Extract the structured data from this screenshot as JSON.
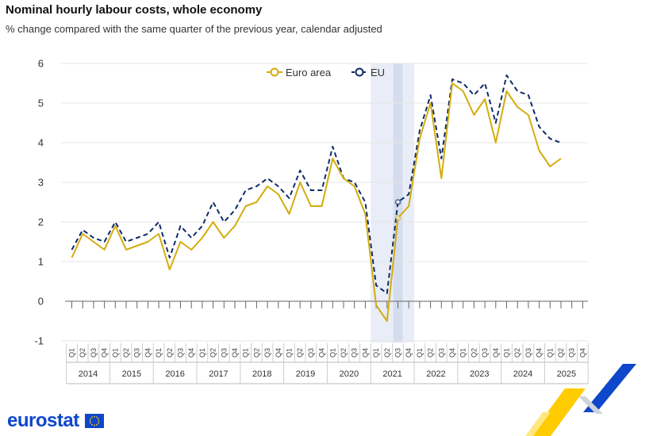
{
  "header": {
    "title": "Nominal hourly labour costs, whole economy",
    "subtitle": "% change compared with the same quarter of the previous year, calendar adjusted"
  },
  "logo": {
    "text": "eurostat"
  },
  "chart_data": {
    "type": "line",
    "title": "Nominal hourly labour costs, whole economy",
    "subtitle": "% change compared with the same quarter of the previous year, calendar adjusted",
    "ylim": [
      -1,
      6
    ],
    "yticks": [
      "6",
      "5",
      "4",
      "3",
      "2",
      "1",
      "0",
      "-1"
    ],
    "quarter_labels": [
      "Q1",
      "Q2",
      "Q3",
      "Q4"
    ],
    "years": [
      "2014",
      "2015",
      "2016",
      "2017",
      "2018",
      "2019",
      "2020",
      "2021",
      "2022",
      "2023",
      "2024",
      "2025"
    ],
    "highlight": {
      "year": "2021",
      "quarter": "Q3"
    },
    "legend": {
      "position": "top-center"
    },
    "colors": {
      "euro_area": "#d4ac0d",
      "eu": "#0f2c68",
      "highlight": "#e8edf7",
      "highlight_dark": "#d4dcee",
      "grid": "#e6e6e6"
    },
    "series": [
      {
        "name": "Euro area",
        "style": "solid",
        "values": [
          1.1,
          1.7,
          1.5,
          1.3,
          1.9,
          1.3,
          1.4,
          1.5,
          1.7,
          0.8,
          1.5,
          1.3,
          1.6,
          2.0,
          1.6,
          1.9,
          2.4,
          2.5,
          2.9,
          2.7,
          2.2,
          3.0,
          2.4,
          2.4,
          3.6,
          3.1,
          2.9,
          2.2,
          -0.1,
          -0.5,
          2.1,
          2.4,
          4.1,
          5.0,
          3.1,
          5.5,
          5.3,
          4.7,
          5.1,
          4.0,
          5.3,
          4.9,
          4.7,
          3.8,
          3.4,
          3.6
        ]
      },
      {
        "name": "EU",
        "style": "dashed",
        "values": [
          1.3,
          1.8,
          1.6,
          1.5,
          2.0,
          1.5,
          1.6,
          1.7,
          2.0,
          1.1,
          1.9,
          1.6,
          1.9,
          2.5,
          2.0,
          2.3,
          2.8,
          2.9,
          3.1,
          2.9,
          2.6,
          3.3,
          2.8,
          2.8,
          3.9,
          3.1,
          3.0,
          2.5,
          0.4,
          0.2,
          2.5,
          2.7,
          4.3,
          5.2,
          3.6,
          5.6,
          5.5,
          5.2,
          5.5,
          4.5,
          5.7,
          5.3,
          5.2,
          4.4,
          4.1,
          4.0
        ]
      }
    ]
  }
}
